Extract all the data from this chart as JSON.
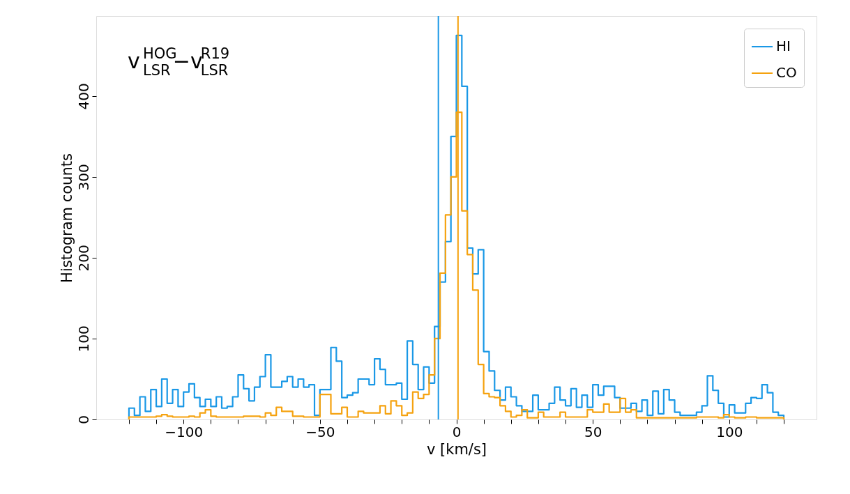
{
  "chart_data": {
    "type": "histogram",
    "annotations": [
      "v$^{HOG}$$_{LSR}$−v$^{R19}$$_{LSR}$"
    ],
    "xlabel": "v [km/s]",
    "ylabel": "Histogram counts",
    "bins": [
      -120,
      -118,
      -116,
      -114,
      -112,
      -110,
      -108,
      -106,
      -104,
      -102,
      -100,
      -98,
      -96,
      -94,
      -92,
      -90,
      -88,
      -86,
      -84,
      -82,
      -80,
      -78,
      -76,
      -74,
      -72,
      -70,
      -68,
      -66,
      -64,
      -62,
      -60,
      -58,
      -56,
      -54,
      -52,
      -50,
      -48,
      -46,
      -44,
      -42,
      -40,
      -38,
      -36,
      -34,
      -32,
      -30,
      -28,
      -26,
      -24,
      -22,
      -20,
      -18,
      -16,
      -14,
      -12,
      -10,
      -8,
      -6,
      -4,
      -2,
      0,
      2,
      4,
      6,
      8,
      10,
      12,
      14,
      16,
      18,
      20,
      22,
      24,
      26,
      28,
      30,
      32,
      34,
      36,
      38,
      40,
      42,
      44,
      46,
      48,
      50,
      52,
      54,
      56,
      58,
      60,
      62,
      64,
      66,
      68,
      70,
      72,
      74,
      76,
      78,
      80,
      82,
      84,
      86,
      88,
      90,
      92,
      94,
      96,
      98,
      100,
      102,
      104,
      106,
      108,
      110,
      112,
      114,
      116,
      118,
      120
    ],
    "series": [
      {
        "name": "HI",
        "color": "#1a98e6",
        "values": [
          14,
          5,
          28,
          10,
          37,
          16,
          50,
          20,
          37,
          16,
          34,
          44,
          27,
          16,
          25,
          16,
          28,
          14,
          16,
          28,
          55,
          38,
          23,
          40,
          53,
          80,
          40,
          40,
          47,
          53,
          40,
          50,
          40,
          43,
          5,
          37,
          37,
          89,
          72,
          27,
          30,
          33,
          50,
          50,
          43,
          75,
          62,
          43,
          43,
          45,
          25,
          97,
          68,
          37,
          65,
          45,
          115,
          170,
          220,
          350,
          475,
          412,
          212,
          180,
          210,
          84,
          60,
          36,
          24,
          40,
          28,
          17,
          10,
          10,
          30,
          12,
          12,
          20,
          40,
          24,
          17,
          38,
          15,
          30,
          15,
          43,
          30,
          41,
          41,
          27,
          14,
          14,
          20,
          10,
          24,
          5,
          35,
          7,
          37,
          24,
          9,
          5,
          5,
          5,
          9,
          17,
          54,
          36,
          20,
          3,
          18,
          8,
          8,
          20,
          27,
          26,
          43,
          33,
          9,
          5
        ]
      },
      {
        "name": "CO",
        "color": "#f5a20f",
        "values": [
          3,
          3,
          3,
          3,
          3,
          4,
          6,
          4,
          3,
          3,
          3,
          4,
          3,
          8,
          12,
          4,
          3,
          3,
          3,
          3,
          3,
          4,
          4,
          4,
          3,
          8,
          5,
          15,
          10,
          10,
          4,
          4,
          3,
          3,
          3,
          31,
          31,
          7,
          7,
          15,
          3,
          3,
          10,
          8,
          8,
          8,
          17,
          7,
          23,
          17,
          5,
          8,
          34,
          26,
          31,
          55,
          100,
          181,
          253,
          300,
          380,
          258,
          204,
          160,
          68,
          32,
          28,
          27,
          17,
          10,
          3,
          5,
          12,
          2,
          2,
          9,
          3,
          3,
          3,
          9,
          3,
          3,
          3,
          3,
          12,
          9,
          9,
          19,
          9,
          9,
          26,
          9,
          12,
          2,
          2,
          2,
          2,
          2,
          2,
          2,
          2,
          2,
          2,
          2,
          3,
          3,
          3,
          3,
          2,
          6,
          3,
          2,
          2,
          3,
          3,
          2,
          2,
          2,
          2,
          2
        ]
      }
    ],
    "xlim": [
      -132,
      132
    ],
    "ylim": [
      0,
      499
    ],
    "xticks": [
      {
        "value": -120,
        "label": null
      },
      {
        "value": -110,
        "label": null
      },
      {
        "value": -100,
        "label": "−100"
      },
      {
        "value": -90,
        "label": null
      },
      {
        "value": -80,
        "label": null
      },
      {
        "value": -70,
        "label": null
      },
      {
        "value": -60,
        "label": null
      },
      {
        "value": -50,
        "label": "−50"
      },
      {
        "value": -40,
        "label": null
      },
      {
        "value": -30,
        "label": null
      },
      {
        "value": -20,
        "label": null
      },
      {
        "value": -10,
        "label": null
      },
      0,
      {
        "value": 10,
        "label": null
      },
      {
        "value": 20,
        "label": null
      },
      {
        "value": 30,
        "label": null
      },
      {
        "value": 40,
        "label": null
      },
      50,
      {
        "value": 60,
        "label": null
      },
      {
        "value": 70,
        "label": null
      },
      {
        "value": 80,
        "label": null
      },
      {
        "value": 90,
        "label": null
      },
      100,
      {
        "value": 110,
        "label": null
      },
      {
        "value": 120,
        "label": null
      }
    ],
    "yticks": [
      0,
      100,
      200,
      300,
      400
    ],
    "ref_lines": [
      {
        "axis": "x",
        "value": -6.6,
        "color": "#1a98e6"
      },
      {
        "axis": "x",
        "value": 0.6,
        "color": "#f5a20f"
      }
    ],
    "legend": "top right",
    "grid": false
  }
}
